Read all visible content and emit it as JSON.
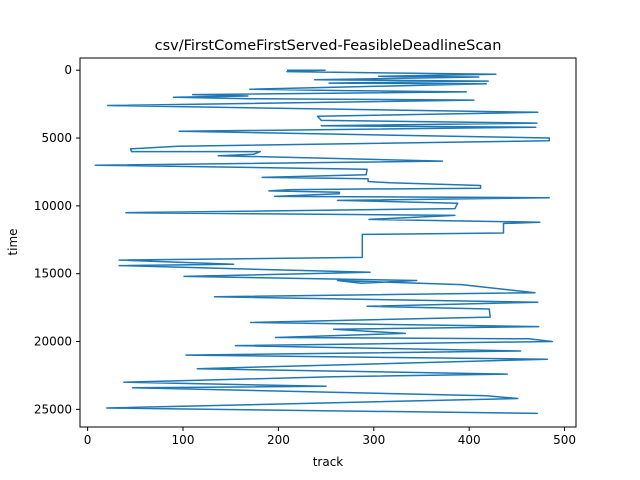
{
  "chart_data": {
    "type": "line",
    "title": "csv/FirstComeFirstServed-FeasibleDeadlineScan",
    "xlabel": "track",
    "ylabel": "time",
    "xlim": [
      -8,
      512
    ],
    "ylim": [
      26300,
      -900
    ],
    "y_inverted": true,
    "grid": false,
    "legend": "none",
    "x_ticks": [
      0,
      100,
      200,
      300,
      400,
      500
    ],
    "y_ticks": [
      0,
      5000,
      10000,
      15000,
      20000,
      25000
    ],
    "series": [
      {
        "color": "#1f77b4",
        "points": [
          [
            209,
            0
          ],
          [
            249,
            0
          ],
          [
            209,
            100
          ],
          [
            428,
            300
          ],
          [
            305,
            450
          ],
          [
            410,
            500
          ],
          [
            238,
            700
          ],
          [
            420,
            800
          ],
          [
            253,
            950
          ],
          [
            418,
            1000
          ],
          [
            170,
            1400
          ],
          [
            270,
            1500
          ],
          [
            397,
            1600
          ],
          [
            110,
            1800
          ],
          [
            168,
            1900
          ],
          [
            90,
            2000
          ],
          [
            170,
            2100
          ],
          [
            405,
            2200
          ],
          [
            21,
            2600
          ],
          [
            472,
            3100
          ],
          [
            241,
            3400
          ],
          [
            245,
            3700
          ],
          [
            471,
            3900
          ],
          [
            245,
            4100
          ],
          [
            470,
            4200
          ],
          [
            96,
            4500
          ],
          [
            484,
            5000
          ],
          [
            484,
            5200
          ],
          [
            95,
            5600
          ],
          [
            45,
            5800
          ],
          [
            46,
            6000
          ],
          [
            181,
            6000
          ],
          [
            174,
            6200
          ],
          [
            137,
            6300
          ],
          [
            372,
            6700
          ],
          [
            8,
            7000
          ],
          [
            293,
            7300
          ],
          [
            292,
            7700
          ],
          [
            183,
            7900
          ],
          [
            294,
            8000
          ],
          [
            294,
            8200
          ],
          [
            317,
            8300
          ],
          [
            412,
            8500
          ],
          [
            412,
            8700
          ],
          [
            214,
            8800
          ],
          [
            190,
            8900
          ],
          [
            264,
            9000
          ],
          [
            264,
            9100
          ],
          [
            196,
            9300
          ],
          [
            484,
            9400
          ],
          [
            262,
            9600
          ],
          [
            388,
            9800
          ],
          [
            385,
            10200
          ],
          [
            40,
            10500
          ],
          [
            385,
            10700
          ],
          [
            295,
            11000
          ],
          [
            474,
            11200
          ],
          [
            436,
            11300
          ],
          [
            436,
            12000
          ],
          [
            288,
            12100
          ],
          [
            288,
            13800
          ],
          [
            33,
            14000
          ],
          [
            153,
            14300
          ],
          [
            33,
            14400
          ],
          [
            296,
            14900
          ],
          [
            101,
            15200
          ],
          [
            345,
            15500
          ],
          [
            287,
            15700
          ],
          [
            262,
            15500
          ],
          [
            392,
            15800
          ],
          [
            469,
            16400
          ],
          [
            133,
            16700
          ],
          [
            472,
            17100
          ],
          [
            293,
            17400
          ],
          [
            421,
            17600
          ],
          [
            422,
            18200
          ],
          [
            171,
            18600
          ],
          [
            473,
            18900
          ],
          [
            258,
            19100
          ],
          [
            333,
            19400
          ],
          [
            197,
            19700
          ],
          [
            462,
            19800
          ],
          [
            487,
            20000
          ],
          [
            155,
            20300
          ],
          [
            454,
            20700
          ],
          [
            103,
            21000
          ],
          [
            482,
            21300
          ],
          [
            115,
            22000
          ],
          [
            440,
            22400
          ],
          [
            257,
            22600
          ],
          [
            38,
            23000
          ],
          [
            250,
            23300
          ],
          [
            47,
            23400
          ],
          [
            418,
            24000
          ],
          [
            451,
            24200
          ],
          [
            20,
            24900
          ],
          [
            472,
            25300
          ]
        ]
      }
    ]
  }
}
